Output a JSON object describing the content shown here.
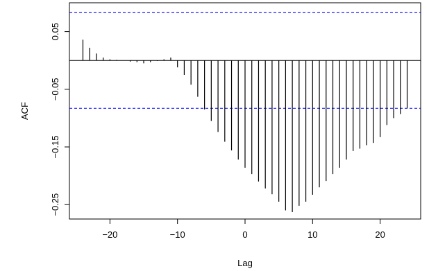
{
  "chart_data": {
    "type": "bar",
    "xlabel": "Lag",
    "ylabel": "ACF",
    "xlim": [
      -26,
      26
    ],
    "ylim": [
      -0.275,
      0.1
    ],
    "x_ticks": [
      -20,
      -10,
      0,
      10,
      20
    ],
    "x_tick_labels": [
      "−20",
      "−10",
      "0",
      "10",
      "20"
    ],
    "y_ticks": [
      0.05,
      -0.05,
      -0.15,
      -0.25
    ],
    "y_tick_labels": [
      "0.05",
      "−0.05",
      "−0.15",
      "−0.25"
    ],
    "confidence_band": [
      0.083,
      -0.083
    ],
    "confidence_color": "#0000ff",
    "bar_color": "#000000",
    "lags": [
      -24,
      -23,
      -22,
      -21,
      -20,
      -19,
      -18,
      -17,
      -16,
      -15,
      -14,
      -13,
      -12,
      -11,
      -10,
      -9,
      -8,
      -7,
      -6,
      -5,
      -4,
      -3,
      -2,
      -1,
      0,
      1,
      2,
      3,
      4,
      5,
      6,
      7,
      8,
      9,
      10,
      11,
      12,
      13,
      14,
      15,
      16,
      17,
      18,
      19,
      20,
      21,
      22,
      23,
      24
    ],
    "values": [
      0.036,
      0.022,
      0.012,
      0.005,
      0.002,
      0.001,
      0.0,
      -0.002,
      -0.003,
      -0.005,
      -0.003,
      -0.001,
      0.002,
      0.005,
      -0.012,
      -0.025,
      -0.042,
      -0.063,
      -0.085,
      -0.105,
      -0.124,
      -0.141,
      -0.156,
      -0.172,
      -0.186,
      -0.197,
      -0.21,
      -0.222,
      -0.232,
      -0.245,
      -0.26,
      -0.263,
      -0.252,
      -0.245,
      -0.233,
      -0.22,
      -0.209,
      -0.197,
      -0.186,
      -0.172,
      -0.157,
      -0.153,
      -0.147,
      -0.143,
      -0.133,
      -0.112,
      -0.1,
      -0.093,
      -0.083
    ]
  }
}
